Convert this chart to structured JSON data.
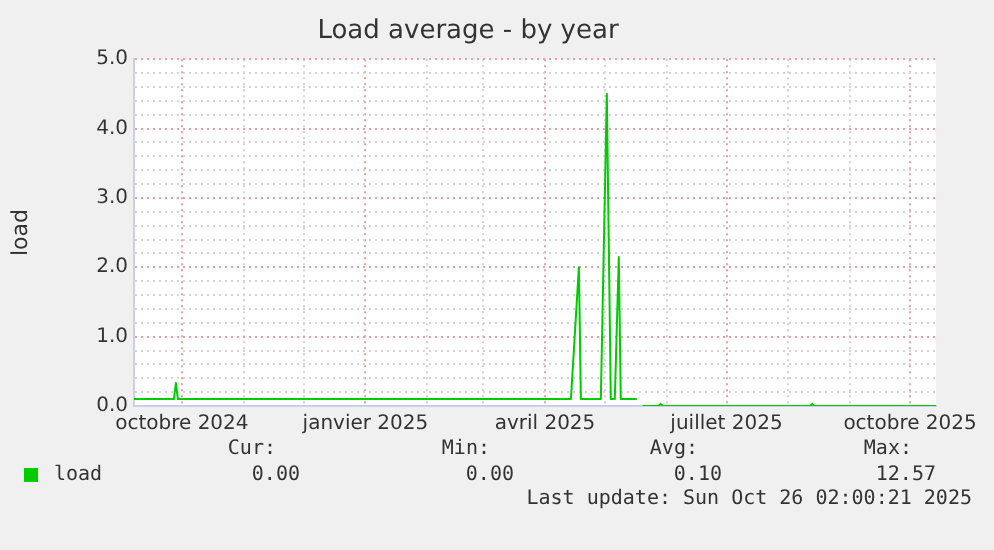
{
  "chart_data": {
    "type": "line",
    "title": "Load average - by year",
    "ylabel": "load",
    "x": [
      "2024-09-07",
      "2024-09-27",
      "2024-09-28",
      "2024-09-29",
      "2025-04-14",
      "2025-04-18",
      "2025-04-19",
      "2025-04-29",
      "2025-05-02",
      "2025-05-04",
      "2025-05-06",
      "2025-05-08",
      "2025-05-09",
      "2025-05-17",
      "2025-05-18",
      "2025-05-20",
      "2025-05-28",
      "2025-05-29",
      "2025-05-30",
      "2025-08-12",
      "2025-08-13",
      "2025-08-14",
      "2025-10-14"
    ],
    "series": [
      {
        "name": "load",
        "color": "#00cc00",
        "values": [
          0.1,
          0.1,
          0.33,
          0.1,
          0.1,
          2.0,
          0.1,
          0.1,
          4.5,
          0.1,
          0.1,
          2.15,
          0.1,
          0.1,
          null,
          0.0,
          0.0,
          0.03,
          0.0,
          0.0,
          0.03,
          0.0,
          0.0
        ]
      }
    ],
    "xlim": [
      "2024-09-07",
      "2025-10-14"
    ],
    "xticks": [
      {
        "value": "2024-10-01",
        "label": "octobre 2024"
      },
      {
        "value": "2024-11-01",
        "label": null
      },
      {
        "value": "2024-12-01",
        "label": null
      },
      {
        "value": "2025-01-01",
        "label": "janvier 2025"
      },
      {
        "value": "2025-02-01",
        "label": null
      },
      {
        "value": "2025-03-01",
        "label": null
      },
      {
        "value": "2025-04-01",
        "label": "avril 2025"
      },
      {
        "value": "2025-05-01",
        "label": null
      },
      {
        "value": "2025-06-01",
        "label": null
      },
      {
        "value": "2025-07-01",
        "label": "juillet 2025"
      },
      {
        "value": "2025-08-01",
        "label": null
      },
      {
        "value": "2025-09-01",
        "label": null
      },
      {
        "value": "2025-10-01",
        "label": "octobre 2025"
      }
    ],
    "ylim": [
      0,
      5
    ],
    "yticks": [
      {
        "value": 0,
        "label": "0.0"
      },
      {
        "value": 0.2,
        "label": null
      },
      {
        "value": 0.4,
        "label": null
      },
      {
        "value": 0.6,
        "label": null
      },
      {
        "value": 0.8,
        "label": null
      },
      {
        "value": 1,
        "label": "1.0"
      },
      {
        "value": 1.2,
        "label": null
      },
      {
        "value": 1.4,
        "label": null
      },
      {
        "value": 1.6,
        "label": null
      },
      {
        "value": 1.8,
        "label": null
      },
      {
        "value": 2,
        "label": "2.0"
      },
      {
        "value": 2.2,
        "label": null
      },
      {
        "value": 2.4,
        "label": null
      },
      {
        "value": 2.6,
        "label": null
      },
      {
        "value": 2.8,
        "label": null
      },
      {
        "value": 3,
        "label": "3.0"
      },
      {
        "value": 3.2,
        "label": null
      },
      {
        "value": 3.4,
        "label": null
      },
      {
        "value": 3.6,
        "label": null
      },
      {
        "value": 3.8,
        "label": null
      },
      {
        "value": 4,
        "label": "4.0"
      },
      {
        "value": 4.2,
        "label": null
      },
      {
        "value": 4.4,
        "label": null
      },
      {
        "value": 4.6,
        "label": null
      },
      {
        "value": 4.8,
        "label": null
      },
      {
        "value": 5,
        "label": "5.0"
      }
    ],
    "grid": true,
    "legend": "bottom left",
    "marker": "none",
    "line_style": "solid",
    "annotations": [
      "Cur:",
      "Min:",
      "Avg:",
      "Max:",
      "0.00",
      "0.00",
      "0.10",
      "12.57",
      "Last update: Sun Oct 26 02:00:21 2025"
    ]
  }
}
